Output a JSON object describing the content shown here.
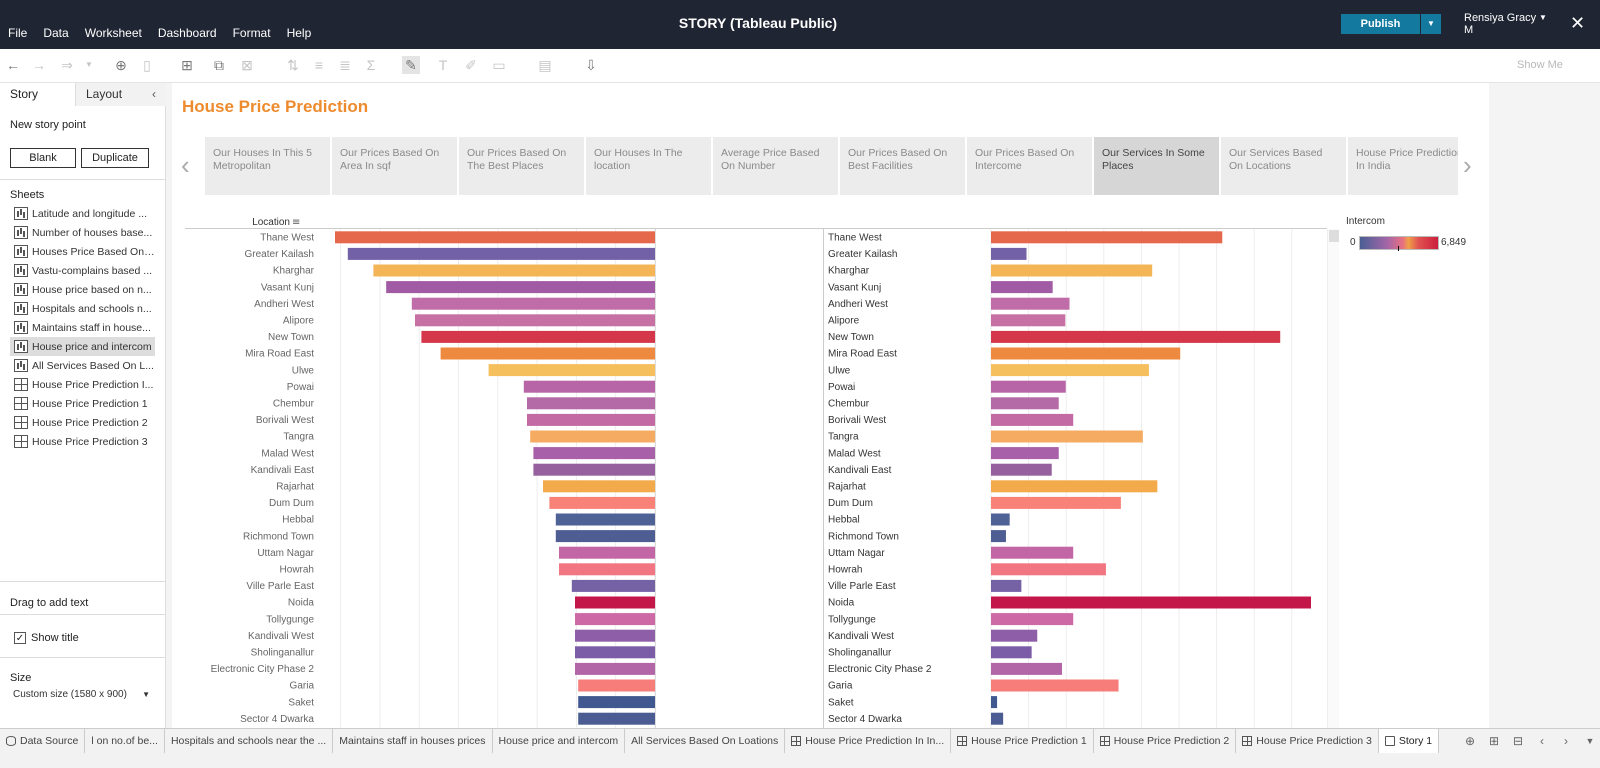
{
  "app": {
    "title": "STORY (Tableau Public)",
    "menu": [
      "File",
      "Data",
      "Worksheet",
      "Dashboard",
      "Format",
      "Help"
    ],
    "publish_label": "Publish",
    "user_name_line1": "Rensiya Gracy",
    "user_name_line2": "M",
    "show_me_label": "Show Me"
  },
  "left_pane": {
    "tab_story": "Story",
    "tab_layout": "Layout",
    "new_story_point": "New story point",
    "blank_label": "Blank",
    "duplicate_label": "Duplicate",
    "sheets_header": "Sheets",
    "sheets": [
      {
        "label": "Latitude and longitude ...",
        "type": "worksheet",
        "selected": false
      },
      {
        "label": "Number of houses base...",
        "type": "worksheet",
        "selected": false
      },
      {
        "label": "Houses Price Based On ...",
        "type": "worksheet",
        "selected": false
      },
      {
        "label": "Vastu-complains based ...",
        "type": "worksheet",
        "selected": false
      },
      {
        "label": "House price based on n...",
        "type": "worksheet",
        "selected": false
      },
      {
        "label": "Hospitals and schools n...",
        "type": "worksheet",
        "selected": false
      },
      {
        "label": "Maintains staff in house...",
        "type": "worksheet",
        "selected": false
      },
      {
        "label": "House price and intercom",
        "type": "worksheet",
        "selected": true
      },
      {
        "label": "All Services Based On L...",
        "type": "worksheet",
        "selected": false
      },
      {
        "label": "House Price Prediction I...",
        "type": "dashboard",
        "selected": false
      },
      {
        "label": "House Price Prediction 1",
        "type": "dashboard",
        "selected": false
      },
      {
        "label": "House Price Prediction 2",
        "type": "dashboard",
        "selected": false
      },
      {
        "label": "House Price Prediction 3",
        "type": "dashboard",
        "selected": false
      }
    ],
    "drag_to_add_text": "Drag to add text",
    "show_title_label": "Show title",
    "show_title_checked": "✓",
    "size_header": "Size",
    "size_value": "Custom size (1580 x 900)"
  },
  "story": {
    "title": "House Price Prediction",
    "points": [
      {
        "label": "Our Houses In This 5 Metropolitan",
        "active": false
      },
      {
        "label": "Our Prices Based On Area In sqf",
        "active": false
      },
      {
        "label": "Our Prices Based On The Best Places",
        "active": false
      },
      {
        "label": "Our Houses In The location",
        "active": false
      },
      {
        "label": "Average Price Based On Number",
        "active": false
      },
      {
        "label": "Our Prices Based On Best Facilities",
        "active": false
      },
      {
        "label": "Our Prices Based On Intercome",
        "active": false
      },
      {
        "label": "Our Services In Some Places",
        "active": true
      },
      {
        "label": "Our Services Based On Locations",
        "active": false
      },
      {
        "label": "House Price Prediction In India",
        "active": false
      }
    ]
  },
  "chart_data": {
    "type": "bar",
    "xlabel": "Location",
    "legend": {
      "title": "Intercom",
      "min": "0",
      "max": "6,849",
      "placement": "top-right"
    },
    "categories": [
      "Thane West",
      "Greater Kailash",
      "Kharghar",
      "Vasant Kunj",
      "Andheri West",
      "Alipore",
      "New Town",
      "Mira Road East",
      "Ulwe",
      "Powai",
      "Chembur",
      "Borivali West",
      "Tangra",
      "Malad West",
      "Kandivali East",
      "Rajarhat",
      "Dum Dum",
      "Hebbal",
      "Richmond Town",
      "Uttam Nagar",
      "Howrah",
      "Ville Parle East",
      "Noida",
      "Tollygunge",
      "Kandivali West",
      "Sholinganallur",
      "Electronic City Phase 2",
      "Garia",
      "Saket",
      "Sector 4 Dwarka"
    ],
    "series": [
      {
        "values": [
          100,
          96,
          88,
          84,
          76,
          75,
          73,
          67,
          52,
          41,
          40,
          40,
          39,
          38,
          38,
          35,
          33,
          31,
          31,
          30,
          30,
          26,
          25,
          25,
          25,
          25,
          25,
          24,
          24,
          24
        ]
      },
      {
        "values": [
          4950,
          760,
          3450,
          1320,
          1680,
          1590,
          6190,
          4050,
          3380,
          1600,
          1450,
          1760,
          3250,
          1450,
          1300,
          3560,
          2780,
          400,
          320,
          1760,
          2460,
          650,
          6849,
          1760,
          990,
          870,
          1520,
          2730,
          130,
          260
        ]
      }
    ],
    "colors": [
      "#e5674c",
      "#7361a8",
      "#f3b556",
      "#a15aa4",
      "#c06ca8",
      "#c770a4",
      "#d4364a",
      "#ee8a3f",
      "#f5bf5d",
      "#b765a6",
      "#b56aa8",
      "#c36aa4",
      "#f6ab62",
      "#a860a8",
      "#96609f",
      "#f2aa4b",
      "#f88278",
      "#4f6296",
      "#4e5e93",
      "#c366a6",
      "#f17681",
      "#7462a5",
      "#c3174a",
      "#cd6aa5",
      "#8f5ea8",
      "#7b5ca6",
      "#b266a8",
      "#f77d7b",
      "#3f5990",
      "#4a5c92"
    ]
  },
  "bottom_tabs": [
    {
      "label": "Data Source",
      "type": "datasource",
      "active": false
    },
    {
      "label": "l on no.of be...",
      "type": "none",
      "active": false
    },
    {
      "label": "Hospitals and schools near the ...",
      "type": "none",
      "active": false
    },
    {
      "label": "Maintains staff in houses prices",
      "type": "none",
      "active": false
    },
    {
      "label": "House price and intercom",
      "type": "none",
      "active": false
    },
    {
      "label": "All Services Based On Loations",
      "type": "none",
      "active": false
    },
    {
      "label": "House Price Prediction In In...",
      "type": "dashboard",
      "active": false
    },
    {
      "label": "House Price Prediction 1",
      "type": "dashboard",
      "active": false
    },
    {
      "label": "House Price Prediction 2",
      "type": "dashboard",
      "active": false
    },
    {
      "label": "House Price Prediction 3",
      "type": "dashboard",
      "active": false
    },
    {
      "label": "Story 1",
      "type": "story",
      "active": true
    }
  ]
}
